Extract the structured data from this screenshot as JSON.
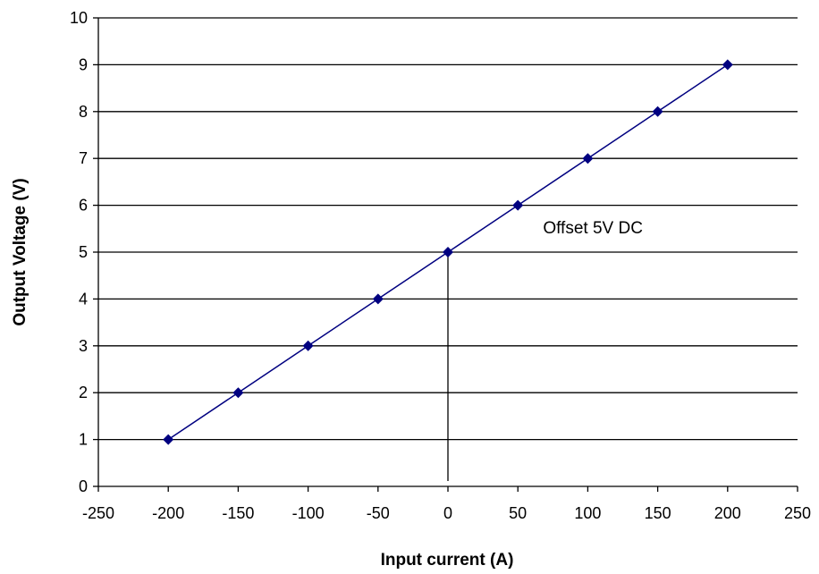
{
  "chart_data": {
    "type": "scatter",
    "title": "",
    "xlabel": "Input current (A)",
    "ylabel": "Output Voltage (V)",
    "xlim": [
      -250,
      250
    ],
    "ylim": [
      0,
      10
    ],
    "xticks": [
      -250,
      -200,
      -150,
      -100,
      -50,
      0,
      50,
      100,
      150,
      200,
      250
    ],
    "yticks": [
      0,
      1,
      2,
      3,
      4,
      5,
      6,
      7,
      8,
      9,
      10
    ],
    "grid": "horizontal",
    "series": [
      {
        "x": [
          -200,
          -150,
          -100,
          -50,
          0,
          50,
          100,
          150,
          200
        ],
        "y": [
          1,
          2,
          3,
          4,
          5,
          6,
          7,
          8,
          9
        ],
        "color": "#000080",
        "marker": "diamond",
        "line": true
      }
    ],
    "annotations": [
      {
        "text": "Offset 5V DC",
        "x": 68,
        "y": 5.4
      }
    ],
    "reference_line": {
      "x": 0,
      "y_from": 0,
      "y_to": 5
    }
  }
}
